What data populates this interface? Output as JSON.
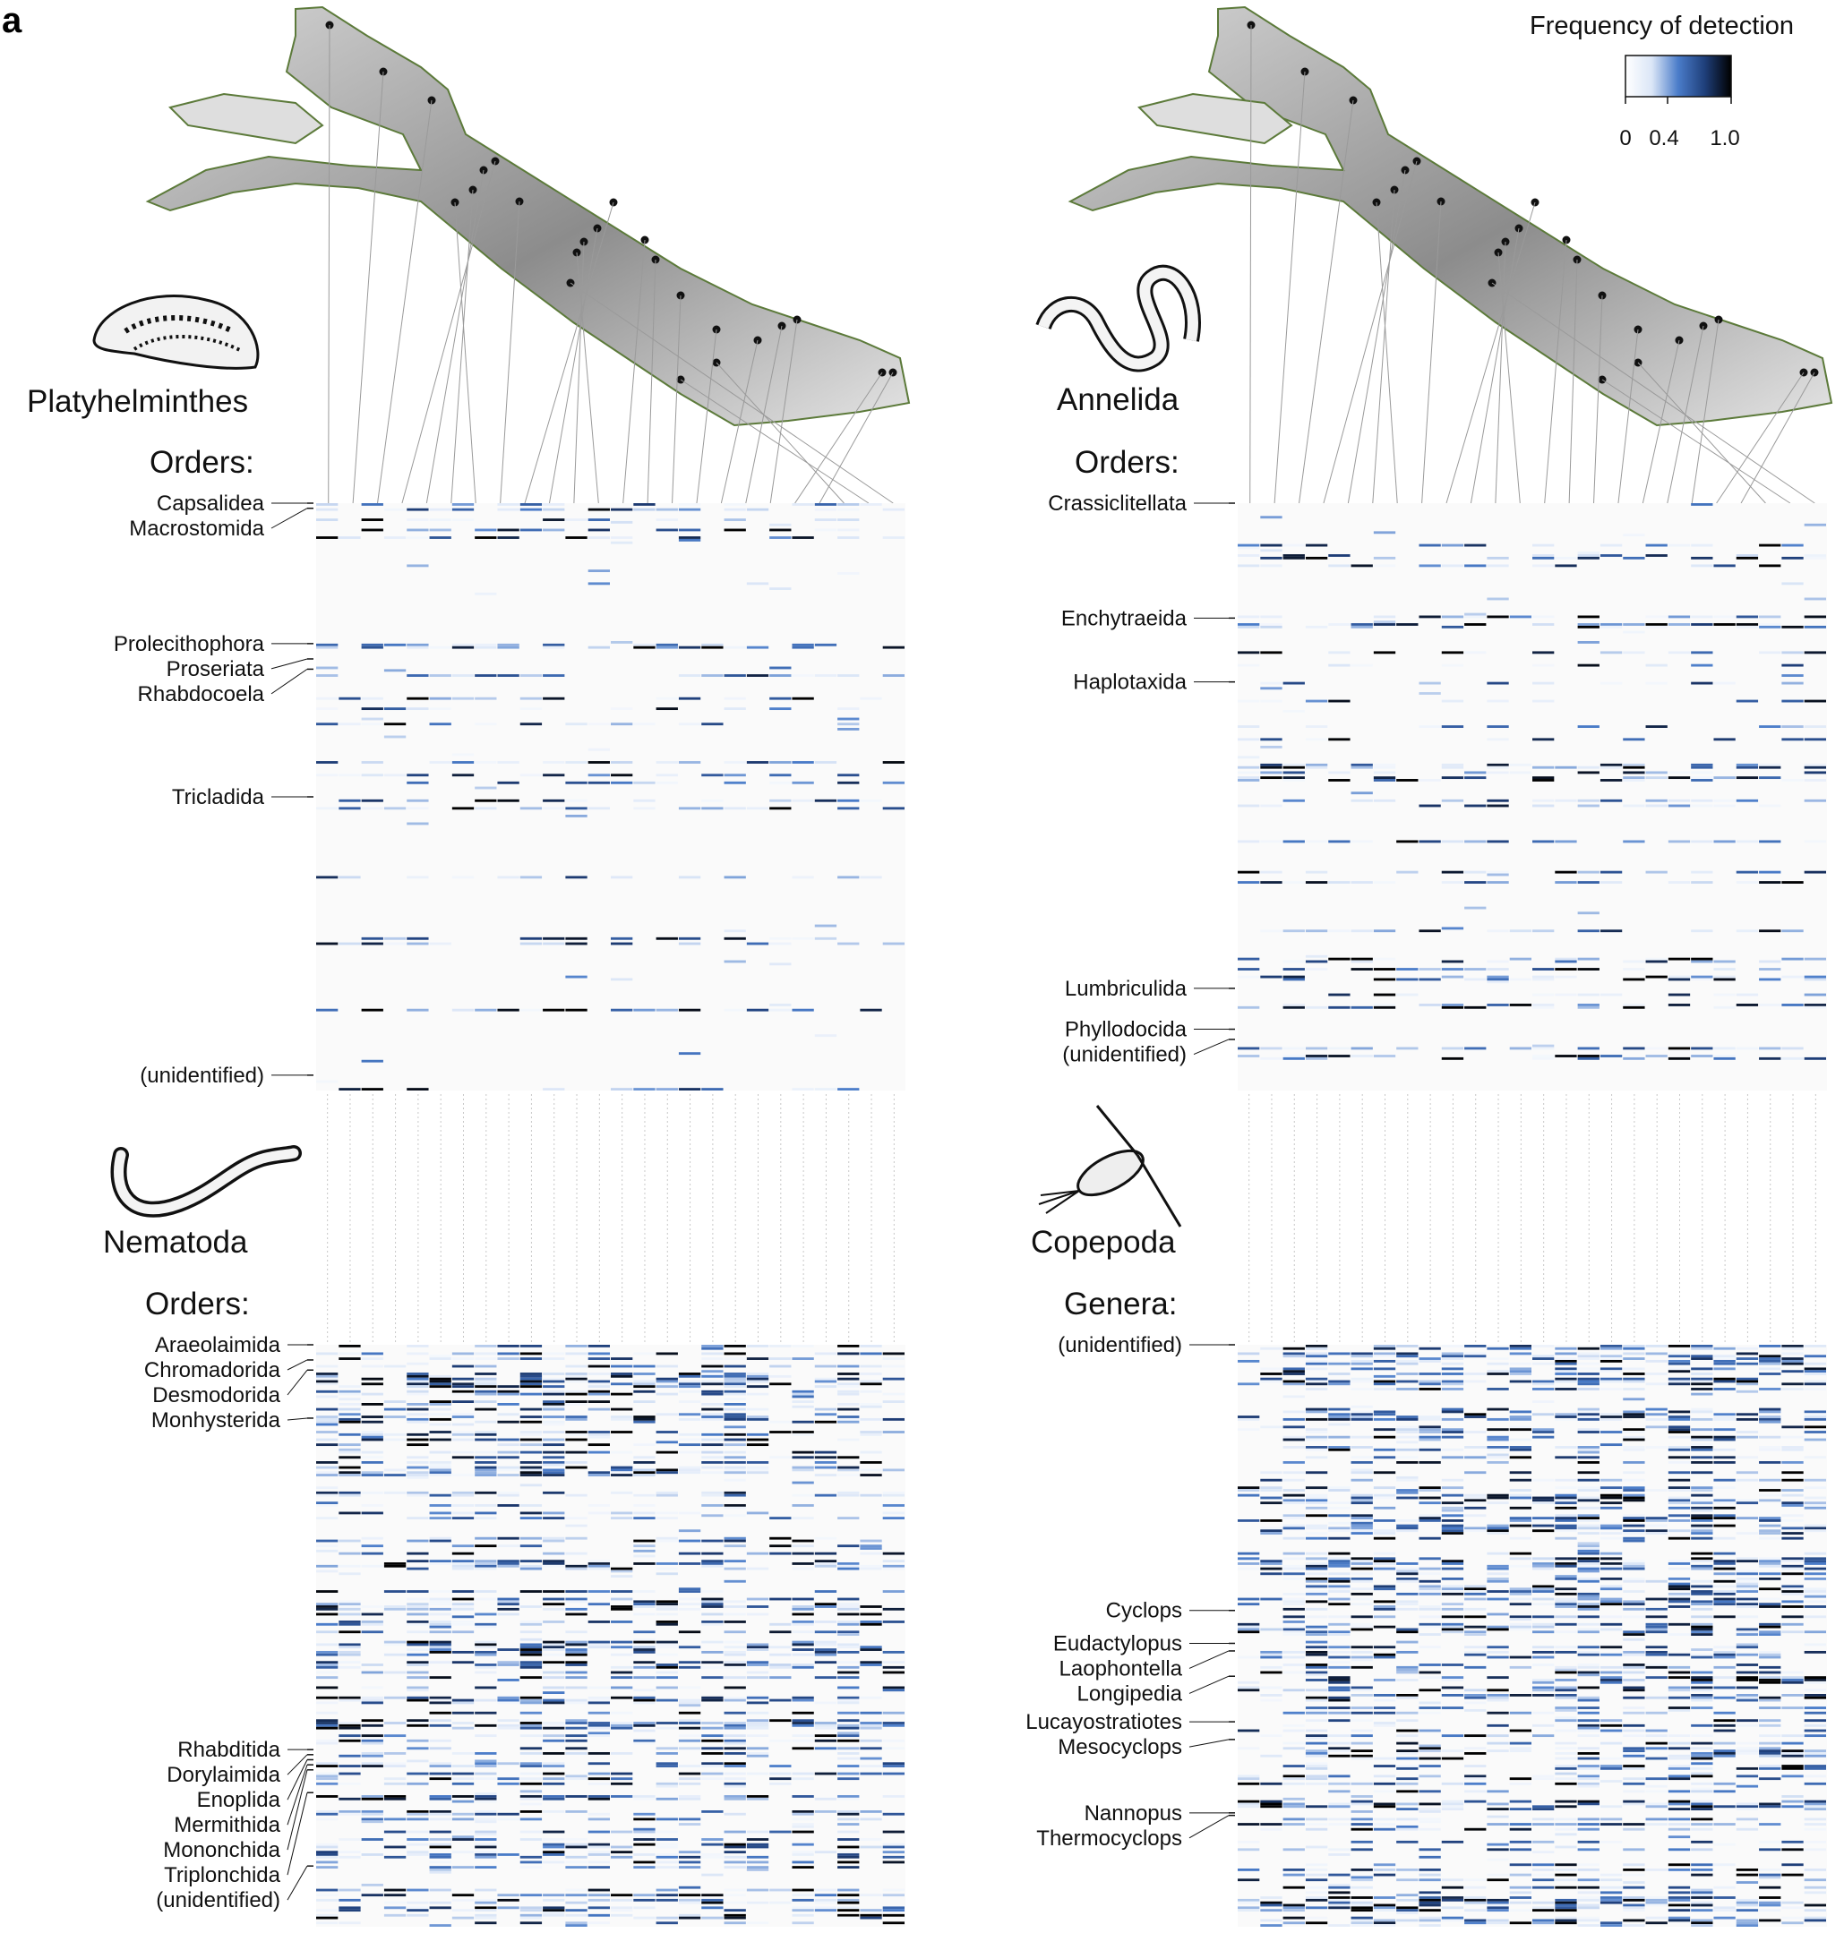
{
  "figure": {
    "panel_letter": "a"
  },
  "legend": {
    "title": "Frequency of detection",
    "ticks": [
      "0",
      "0.4",
      "1.0"
    ],
    "tick_values": [
      0,
      0.4,
      1.0
    ],
    "colors": [
      "#ffffff",
      "#dbe6f7",
      "#4a7cc9",
      "#1f3f7a",
      "#000000"
    ]
  },
  "chart_data": [
    {
      "type": "heatmap",
      "title": "Platyhelminthes",
      "subtitle": "Orders:",
      "columns": 26,
      "groups": [
        {
          "label": "Capsalidea",
          "row_start": 0
        },
        {
          "label": "Macrostomida",
          "row_start": 4
        },
        {
          "label": "Prolecithophora",
          "row_start": 110
        },
        {
          "label": "Proseriata",
          "row_start": 122
        },
        {
          "label": "Rhabdocoela",
          "row_start": 130
        },
        {
          "label": "Tricladida",
          "row_start": 230
        },
        {
          "label": "(unidentified)",
          "row_start": 448
        }
      ],
      "total_rows": 460
    },
    {
      "type": "heatmap",
      "title": "Annelida",
      "subtitle": "Orders:",
      "columns": 26,
      "groups": [
        {
          "label": "Crassiclitellata",
          "row_start": 0
        },
        {
          "label": "Enchytraeida",
          "row_start": 90
        },
        {
          "label": "Haplotaxida",
          "row_start": 140
        },
        {
          "label": "Lumbriculida",
          "row_start": 380
        },
        {
          "label": "Phyllodocida",
          "row_start": 412
        },
        {
          "label": "(unidentified)",
          "row_start": 420
        }
      ],
      "total_rows": 460
    },
    {
      "type": "heatmap",
      "title": "Nematoda",
      "subtitle": "Orders:",
      "columns": 26,
      "groups": [
        {
          "label": "Araeolaimida",
          "row_start": 0
        },
        {
          "label": "Chromadorida",
          "row_start": 12
        },
        {
          "label": "Desmodorida",
          "row_start": 20
        },
        {
          "label": "Monhysterida",
          "row_start": 58
        },
        {
          "label": "Rhabditida",
          "row_start": 320
        },
        {
          "label": "Dorylaimida",
          "row_start": 324
        },
        {
          "label": "Enoplida",
          "row_start": 328
        },
        {
          "label": "Mermithida",
          "row_start": 332
        },
        {
          "label": "Mononchida",
          "row_start": 336
        },
        {
          "label": "Triplonchida",
          "row_start": 354
        },
        {
          "label": "(unidentified)",
          "row_start": 412
        }
      ],
      "total_rows": 460
    },
    {
      "type": "heatmap",
      "title": "Copepoda",
      "subtitle": "Genera:",
      "columns": 26,
      "groups": [
        {
          "label": "(unidentified)",
          "row_start": 0
        },
        {
          "label": "Cyclops",
          "row_start": 210
        },
        {
          "label": "Eudactylopus",
          "row_start": 236
        },
        {
          "label": "Laophontella",
          "row_start": 242
        },
        {
          "label": "Longipedia",
          "row_start": 262
        },
        {
          "label": "Lucayostratiotes",
          "row_start": 298
        },
        {
          "label": "Mesocyclops",
          "row_start": 312
        },
        {
          "label": "Nannopus",
          "row_start": 370
        },
        {
          "label": "Thermocyclops",
          "row_start": 372
        }
      ],
      "total_rows": 460
    }
  ]
}
